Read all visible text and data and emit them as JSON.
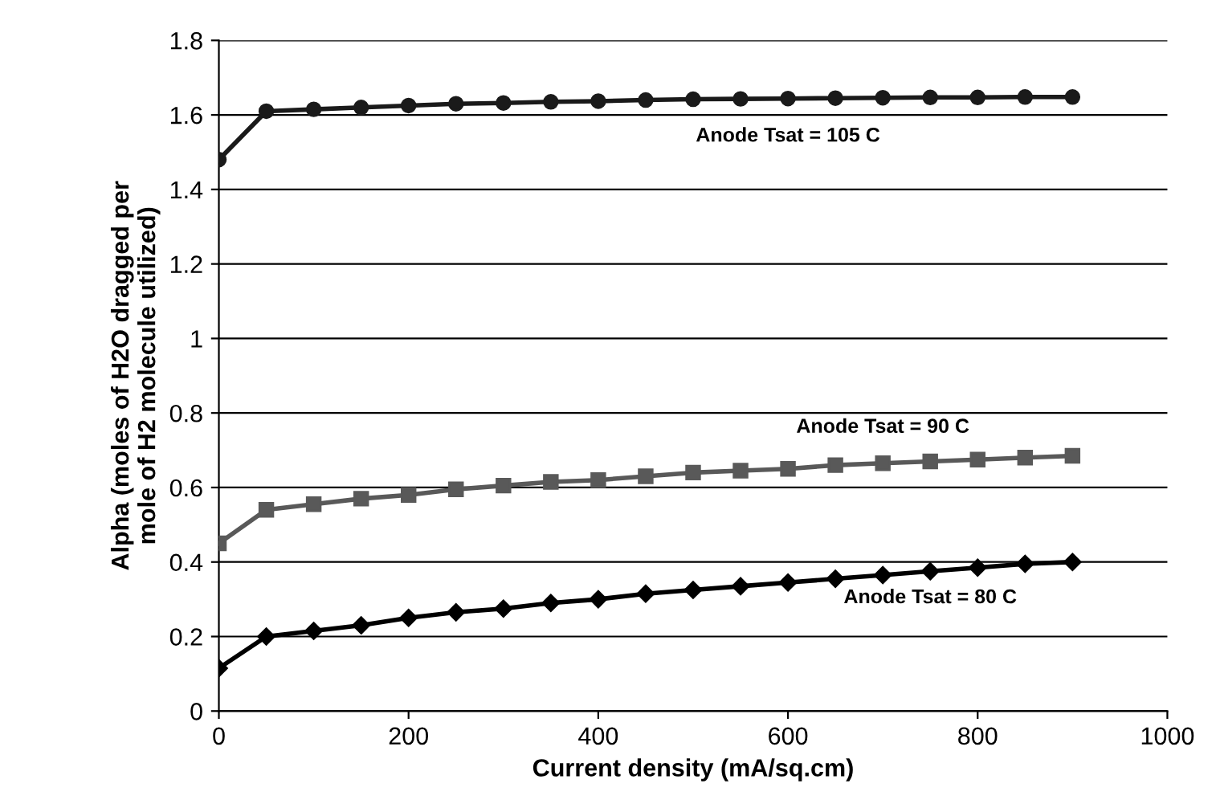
{
  "chart_data": {
    "type": "line",
    "xlabel": "Current density (mA/sq.cm)",
    "ylabel": "Alpha (moles of H2O dragged per\nmole of H2 molecule utilized)",
    "x": [
      0,
      50,
      100,
      150,
      200,
      250,
      300,
      350,
      400,
      450,
      500,
      550,
      600,
      650,
      700,
      750,
      800,
      850,
      900
    ],
    "series": [
      {
        "name": "Anode Tsat = 105 C",
        "color": "#1a1a1a",
        "marker": "circle",
        "values": [
          1.48,
          1.61,
          1.615,
          1.62,
          1.625,
          1.63,
          1.632,
          1.635,
          1.637,
          1.64,
          1.642,
          1.643,
          1.644,
          1.645,
          1.646,
          1.647,
          1.647,
          1.648,
          1.648
        ]
      },
      {
        "name": "Anode Tsat = 90 C",
        "color": "#595959",
        "marker": "square",
        "values": [
          0.45,
          0.54,
          0.555,
          0.57,
          0.58,
          0.595,
          0.605,
          0.615,
          0.62,
          0.63,
          0.64,
          0.645,
          0.65,
          0.66,
          0.665,
          0.67,
          0.675,
          0.68,
          0.685
        ]
      },
      {
        "name": "Anode Tsat = 80 C",
        "color": "#000000",
        "marker": "diamond",
        "values": [
          0.115,
          0.2,
          0.215,
          0.23,
          0.25,
          0.265,
          0.275,
          0.29,
          0.3,
          0.315,
          0.325,
          0.335,
          0.345,
          0.355,
          0.365,
          0.375,
          0.385,
          0.395,
          0.4
        ]
      }
    ],
    "xlim": [
      0,
      1000
    ],
    "xticks": [
      0,
      200,
      400,
      600,
      800,
      1000
    ],
    "ylim": [
      0,
      1.8
    ],
    "yticks": [
      {
        "value": 0,
        "label": "0"
      },
      {
        "value": 0.2,
        "label": "0.2"
      },
      {
        "value": 0.4,
        "label": "0.4"
      },
      {
        "value": 0.6,
        "label": "0.6"
      },
      {
        "value": 0.8,
        "label": "0.8"
      },
      {
        "value": 1,
        "label": "1"
      },
      {
        "value": 1.2,
        "label": "1.2"
      },
      {
        "value": 1.4,
        "label": "1.4"
      },
      {
        "value": 1.6,
        "label": "1.6"
      },
      {
        "value": 1.8,
        "label": "1.8"
      }
    ],
    "grid": "y",
    "line_style": "solid"
  }
}
